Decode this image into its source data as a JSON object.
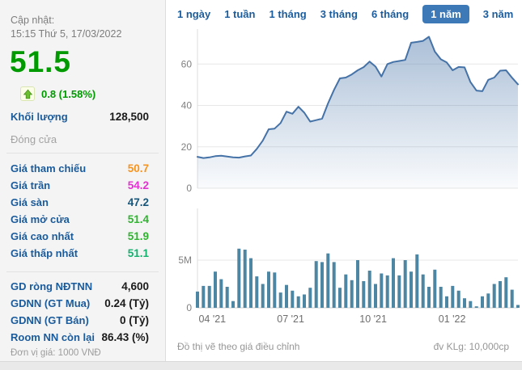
{
  "sidebar": {
    "updated_label": "Cập nhật:",
    "updated_time": "15:15 Thứ 5, 17/03/2022",
    "price": "51.5",
    "change": "0.8 (1.58%)",
    "price_color": "#009a00",
    "volume_label": "Khối lượng",
    "volume_value": "128,500",
    "section_close": "Đóng cửa",
    "price_rows": [
      {
        "label": "Giá tham chiếu",
        "value": "50.7",
        "color": "#f7941e"
      },
      {
        "label": "Giá trần",
        "value": "54.2",
        "color": "#e531d1"
      },
      {
        "label": "Giá sàn",
        "value": "47.2",
        "color": "#16567a"
      },
      {
        "label": "Giá mở cửa",
        "value": "51.4",
        "color": "#2fb42f"
      },
      {
        "label": "Giá cao nhất",
        "value": "51.9",
        "color": "#2fb42f"
      },
      {
        "label": "Giá thấp nhất",
        "value": "51.1",
        "color": "#12b26e"
      }
    ],
    "foreign_rows": [
      {
        "label": "GD ròng NĐTNN",
        "value": "4,600"
      },
      {
        "label": "GDNN (GT Mua)",
        "value": "0.24 (Tỷ)"
      },
      {
        "label": "GDNN (GT Bán)",
        "value": "0 (Tỷ)"
      },
      {
        "label": "Room NN còn lại",
        "value": "86.43 (%)"
      }
    ],
    "unit_note": "Đơn vị giá: 1000 VNĐ"
  },
  "tabs": [
    {
      "label": "1 ngày",
      "selected": false
    },
    {
      "label": "1 tuần",
      "selected": false
    },
    {
      "label": "1 tháng",
      "selected": false
    },
    {
      "label": "3 tháng",
      "selected": false
    },
    {
      "label": "6 tháng",
      "selected": false
    },
    {
      "label": "1 năm",
      "selected": true
    },
    {
      "label": "3 năm",
      "selected": false
    },
    {
      "label": "Tất cả",
      "selected": false
    }
  ],
  "tab_selected_bg": "#3d79b6",
  "footer": {
    "left": "Đồ thị vẽ theo giá điều chỉnh",
    "right": "đv KLg: 10,000cp"
  },
  "chart_data": [
    {
      "type": "area",
      "description": "Adjusted price over 1 year, thousand VND",
      "y_ticks": [
        0,
        20,
        40,
        60
      ],
      "ylim": [
        0,
        75
      ],
      "grid": true,
      "line_color": "#4572a7",
      "fill_top": "rgba(69,114,167,0.45)",
      "fill_bottom": "rgba(69,114,167,0.03)",
      "values": [
        15.2,
        14.6,
        14.9,
        15.5,
        15.7,
        15.3,
        14.9,
        14.8,
        15.4,
        15.8,
        19.0,
        23.0,
        28.5,
        28.8,
        31.5,
        37.0,
        36.0,
        39.4,
        36.5,
        32.2,
        32.9,
        33.6,
        41.0,
        47.5,
        53.1,
        53.5,
        55.0,
        57.0,
        58.5,
        61.2,
        58.8,
        54.0,
        60.0,
        61.0,
        61.5,
        62.0,
        70.3,
        70.7,
        71.2,
        73.2,
        66.0,
        62.3,
        60.8,
        57.0,
        58.6,
        58.4,
        51.3,
        47.2,
        46.9,
        52.4,
        53.5,
        56.8,
        57.0,
        53.4,
        50.2
      ]
    },
    {
      "type": "bar",
      "description": "Weekly traded volume, millions of shares",
      "y_ticks": [
        {
          "value": 0,
          "label": "0"
        },
        {
          "value": 5,
          "label": "5M"
        }
      ],
      "ylim": [
        0,
        7.5
      ],
      "grid": true,
      "bar_color": "#4d86a3",
      "x_axis_labels": [
        "04 '21",
        "07 '21",
        "10 '21",
        "01 '22"
      ],
      "x_label_indices": [
        2.5,
        15.7,
        29.6,
        42.9
      ],
      "values": [
        1.7,
        2.3,
        2.3,
        3.8,
        3.0,
        2.2,
        0.7,
        6.2,
        6.1,
        5.2,
        3.3,
        2.5,
        3.8,
        3.7,
        1.6,
        2.4,
        1.8,
        1.2,
        1.4,
        2.1,
        4.9,
        4.8,
        5.7,
        4.8,
        2.1,
        3.5,
        2.9,
        5.0,
        2.8,
        3.9,
        2.5,
        3.6,
        3.4,
        5.2,
        3.4,
        5.0,
        3.8,
        5.6,
        3.5,
        2.2,
        4.0,
        2.2,
        1.2,
        2.3,
        1.8,
        1.0,
        0.7,
        0.15,
        1.2,
        1.5,
        2.5,
        2.8,
        3.2,
        1.9,
        0.3
      ]
    }
  ]
}
